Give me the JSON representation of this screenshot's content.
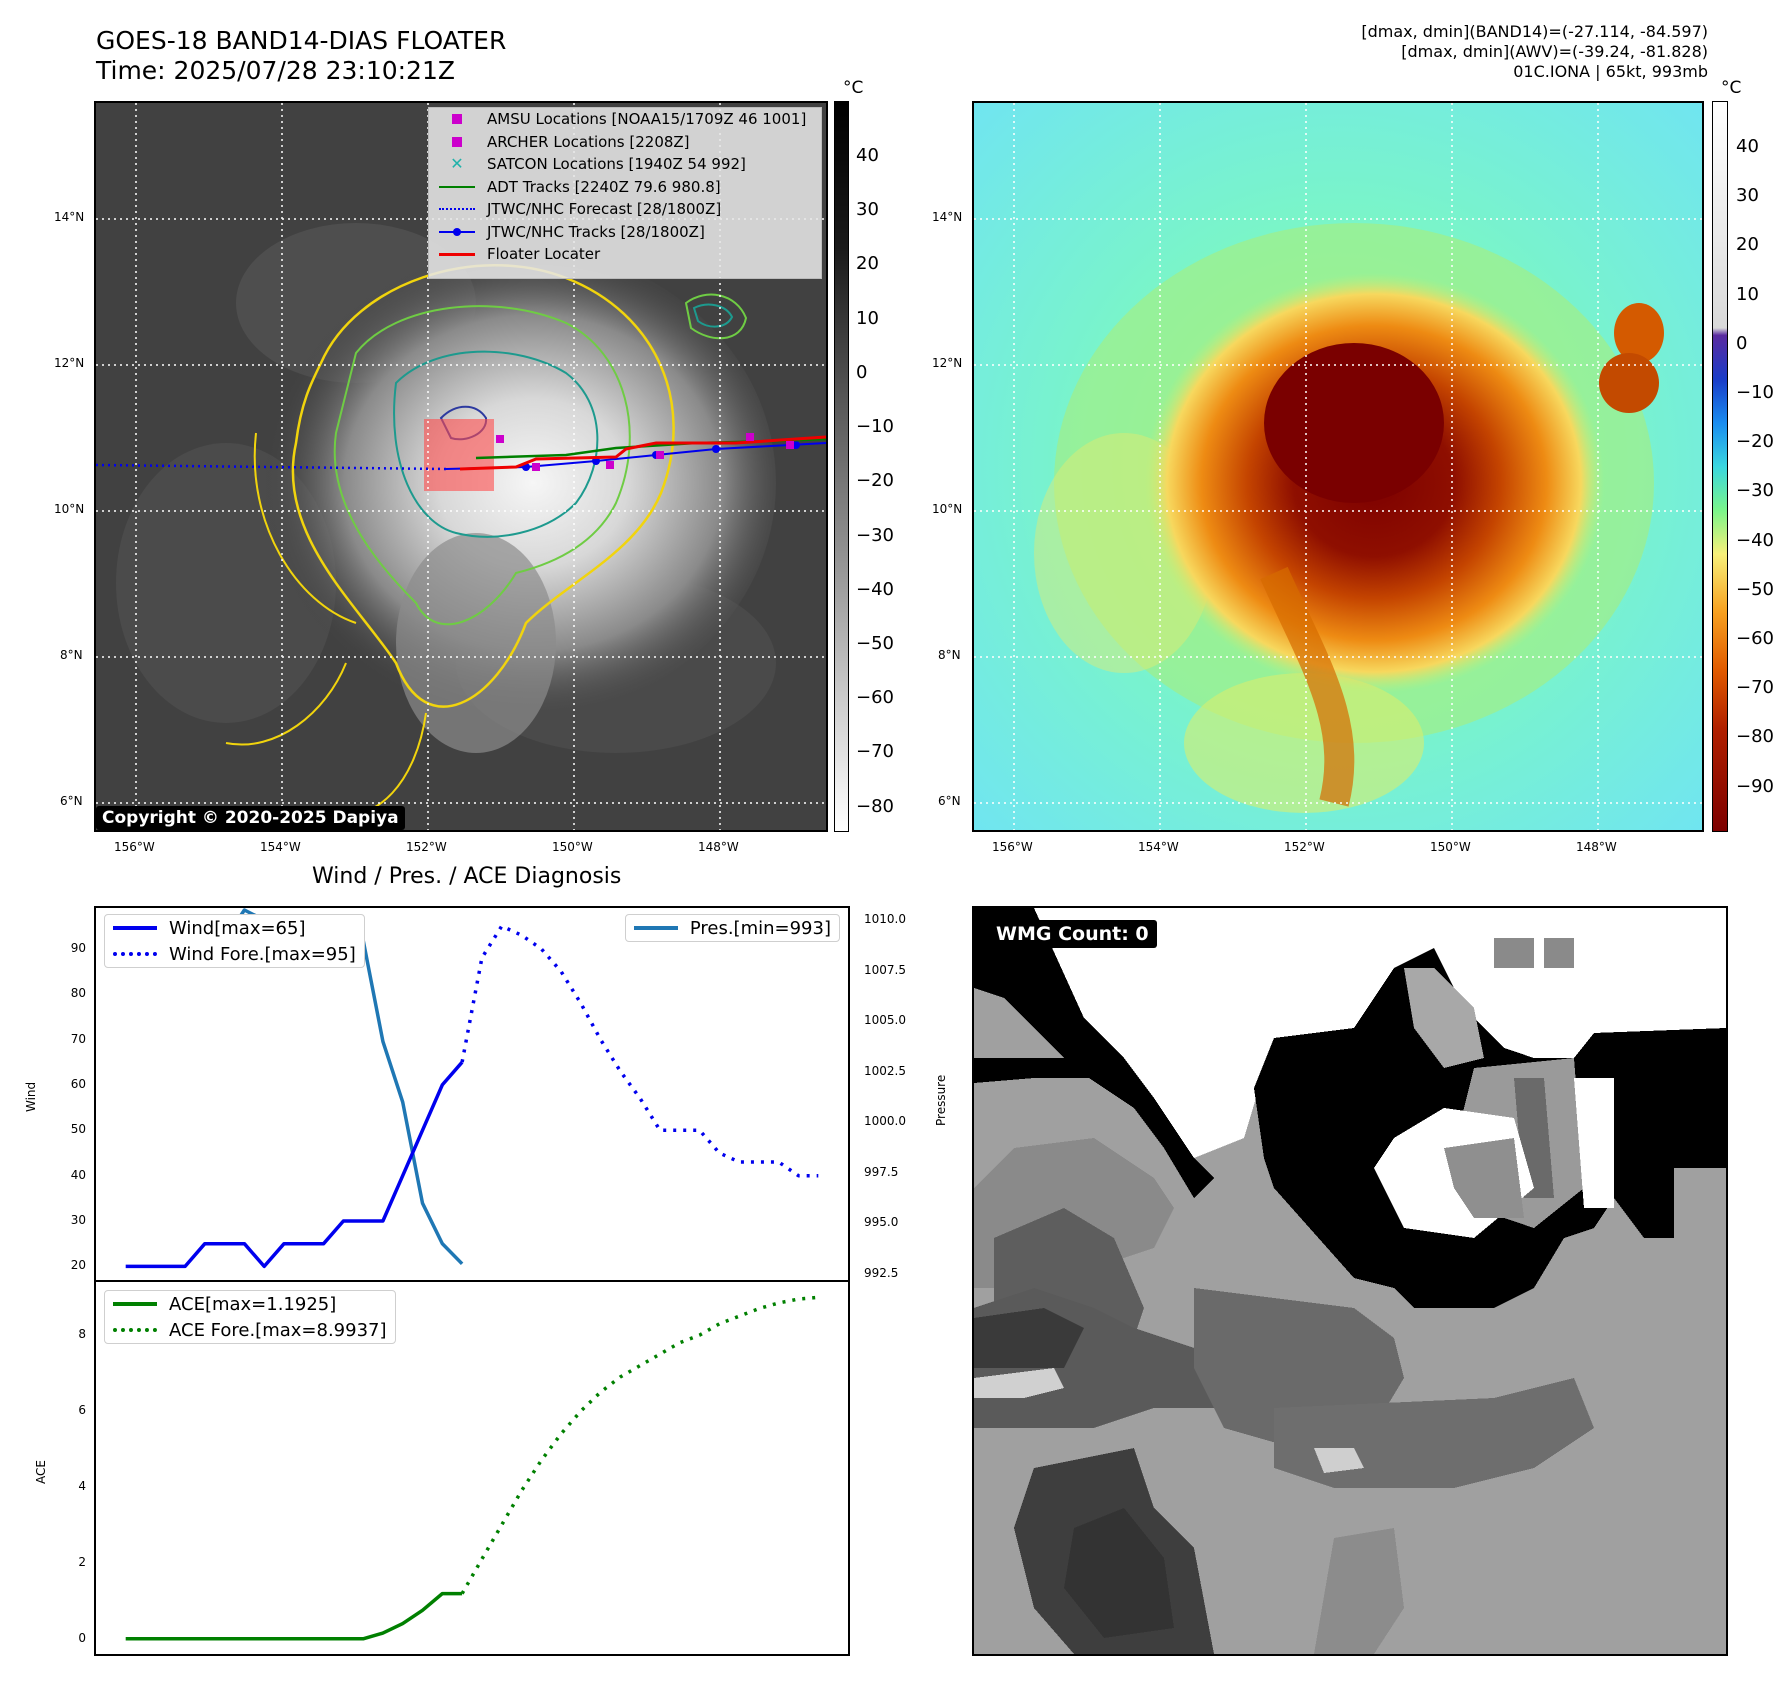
{
  "header": {
    "title_line1": "GOES-18 BAND14-DIAS FLOATER",
    "title_line2": "Time: 2025/07/28 23:10:21Z",
    "right_line1": "[dmax, dmin](BAND14)=(-27.114, -84.597)",
    "right_line2": "[dmax, dmin](AWV)=(-39.24, -81.828)",
    "right_line3": "01C.IONA | 65kt, 993mb"
  },
  "ir_panel": {
    "lat_labels": [
      "14°N",
      "12°N",
      "10°N",
      "8°N",
      "6°N"
    ],
    "lon_labels": [
      "156°W",
      "154°W",
      "152°W",
      "150°W",
      "148°W"
    ],
    "copyright": "Copyright © 2020-2025 Dapiya",
    "legend": [
      {
        "label": "AMSU Locations [NOAA15/1709Z 46 1001]",
        "symbol": "square",
        "color": "#cc00cc"
      },
      {
        "label": "ARCHER Locations [2208Z]",
        "symbol": "square",
        "color": "#cc00cc"
      },
      {
        "label": "SATCON Locations [1940Z 54 992]",
        "symbol": "x",
        "color": "#20b2aa"
      },
      {
        "label": "ADT Tracks [2240Z 79.6 980.8]",
        "symbol": "line",
        "color": "#008000"
      },
      {
        "label": "JTWC/NHC Forecast [28/1800Z]",
        "symbol": "dotted",
        "color": "#0000ee"
      },
      {
        "label": "JTWC/NHC Tracks [28/1800Z]",
        "symbol": "line-dot",
        "color": "#0000ee"
      },
      {
        "label": "Floater Locater",
        "symbol": "line",
        "color": "#ee0000"
      }
    ],
    "colorbar_unit": "°C",
    "colorbar_ticks": [
      "40",
      "30",
      "20",
      "10",
      "0",
      "−10",
      "−20",
      "−30",
      "−40",
      "−50",
      "−60",
      "−70",
      "−80"
    ]
  },
  "color_panel": {
    "lat_labels": [
      "14°N",
      "12°N",
      "10°N",
      "8°N",
      "6°N"
    ],
    "lon_labels": [
      "156°W",
      "154°W",
      "152°W",
      "150°W",
      "148°W"
    ],
    "colorbar_unit": "°C",
    "colorbar_ticks": [
      "40",
      "30",
      "20",
      "10",
      "0",
      "−10",
      "−20",
      "−30",
      "−40",
      "−50",
      "−60",
      "−70",
      "−80",
      "−90"
    ]
  },
  "diagnosis": {
    "title": "Wind / Pres. / ACE Diagnosis",
    "wind_ylabel": "Wind",
    "pres_ylabel": "Pressure",
    "ace_ylabel": "ACE",
    "wind_ticks": [
      "90",
      "80",
      "70",
      "60",
      "50",
      "40",
      "30",
      "20"
    ],
    "pres_ticks": [
      "1010.0",
      "1007.5",
      "1005.0",
      "1002.5",
      "1000.0",
      "997.5",
      "995.0",
      "992.5"
    ],
    "ace_ticks": [
      "8",
      "6",
      "4",
      "2",
      "0"
    ],
    "legend_wind": "Wind[max=65]",
    "legend_wind_fore": "Wind Fore.[max=95]",
    "legend_pres": "Pres.[min=993]",
    "legend_ace": "ACE[max=1.1925]",
    "legend_ace_fore": "ACE Fore.[max=8.9937]"
  },
  "wmg_panel": {
    "label": "WMG Count: 0"
  },
  "chart_data": [
    {
      "type": "line",
      "title": "Wind / Pres. / ACE Diagnosis",
      "xlabel": "",
      "ylabel": "Wind",
      "ylim": [
        17,
        99
      ],
      "series": [
        {
          "name": "Wind[max=65]",
          "color": "#0000ee",
          "style": "solid",
          "x": [
            0,
            1,
            2,
            3,
            4,
            5,
            6,
            7,
            8,
            9,
            10,
            11,
            12,
            13,
            14,
            15,
            16,
            17
          ],
          "values": [
            20,
            20,
            20,
            20,
            25,
            25,
            25,
            20,
            25,
            25,
            25,
            30,
            30,
            30,
            40,
            50,
            60,
            65
          ]
        },
        {
          "name": "Wind Fore.[max=95]",
          "color": "#0000ee",
          "style": "dotted",
          "x": [
            17,
            18,
            19,
            20,
            21,
            22,
            23,
            24,
            25,
            26,
            27,
            28,
            29,
            30,
            31,
            32,
            33,
            34,
            35
          ],
          "values": [
            65,
            88,
            95,
            93,
            90,
            85,
            78,
            70,
            63,
            57,
            50,
            50,
            50,
            45,
            43,
            43,
            43,
            40,
            40
          ]
        }
      ]
    },
    {
      "type": "line",
      "ylabel": "Pressure",
      "ylim": [
        992.2,
        1010.6
      ],
      "series": [
        {
          "name": "Pres.[min=993]",
          "color": "#1f77b4",
          "style": "solid",
          "x": [
            0,
            1,
            2,
            3,
            4,
            5,
            6,
            7,
            8,
            9,
            10,
            11,
            12,
            13,
            14,
            15,
            16,
            17
          ],
          "values": [
            1010,
            1010,
            1010,
            1009.5,
            1009.0,
            1009.0,
            1010.5,
            1010,
            1010,
            1009.0,
            1009.5,
            1009.0,
            1009.0,
            1004,
            1001,
            996,
            994,
            993
          ]
        }
      ]
    },
    {
      "type": "line",
      "ylabel": "ACE",
      "ylim": [
        -0.4,
        9.4
      ],
      "series": [
        {
          "name": "ACE[max=1.1925]",
          "color": "#008000",
          "style": "solid",
          "x": [
            0,
            1,
            2,
            3,
            4,
            5,
            6,
            7,
            8,
            9,
            10,
            11,
            12,
            13,
            14,
            15,
            16,
            17
          ],
          "values": [
            0,
            0,
            0,
            0,
            0,
            0,
            0,
            0,
            0,
            0,
            0,
            0,
            0,
            0.15,
            0.4,
            0.75,
            1.1925,
            1.1925
          ]
        },
        {
          "name": "ACE Fore.[max=8.9937]",
          "color": "#008000",
          "style": "dotted",
          "x": [
            17,
            18,
            19,
            20,
            21,
            22,
            23,
            24,
            25,
            26,
            27,
            28,
            29,
            30,
            31,
            32,
            33,
            34,
            35
          ],
          "values": [
            1.1925,
            2.1,
            3.0,
            3.9,
            4.7,
            5.4,
            6.0,
            6.5,
            6.9,
            7.2,
            7.5,
            7.8,
            8.0,
            8.3,
            8.5,
            8.7,
            8.85,
            8.95,
            8.9937
          ]
        }
      ]
    }
  ]
}
